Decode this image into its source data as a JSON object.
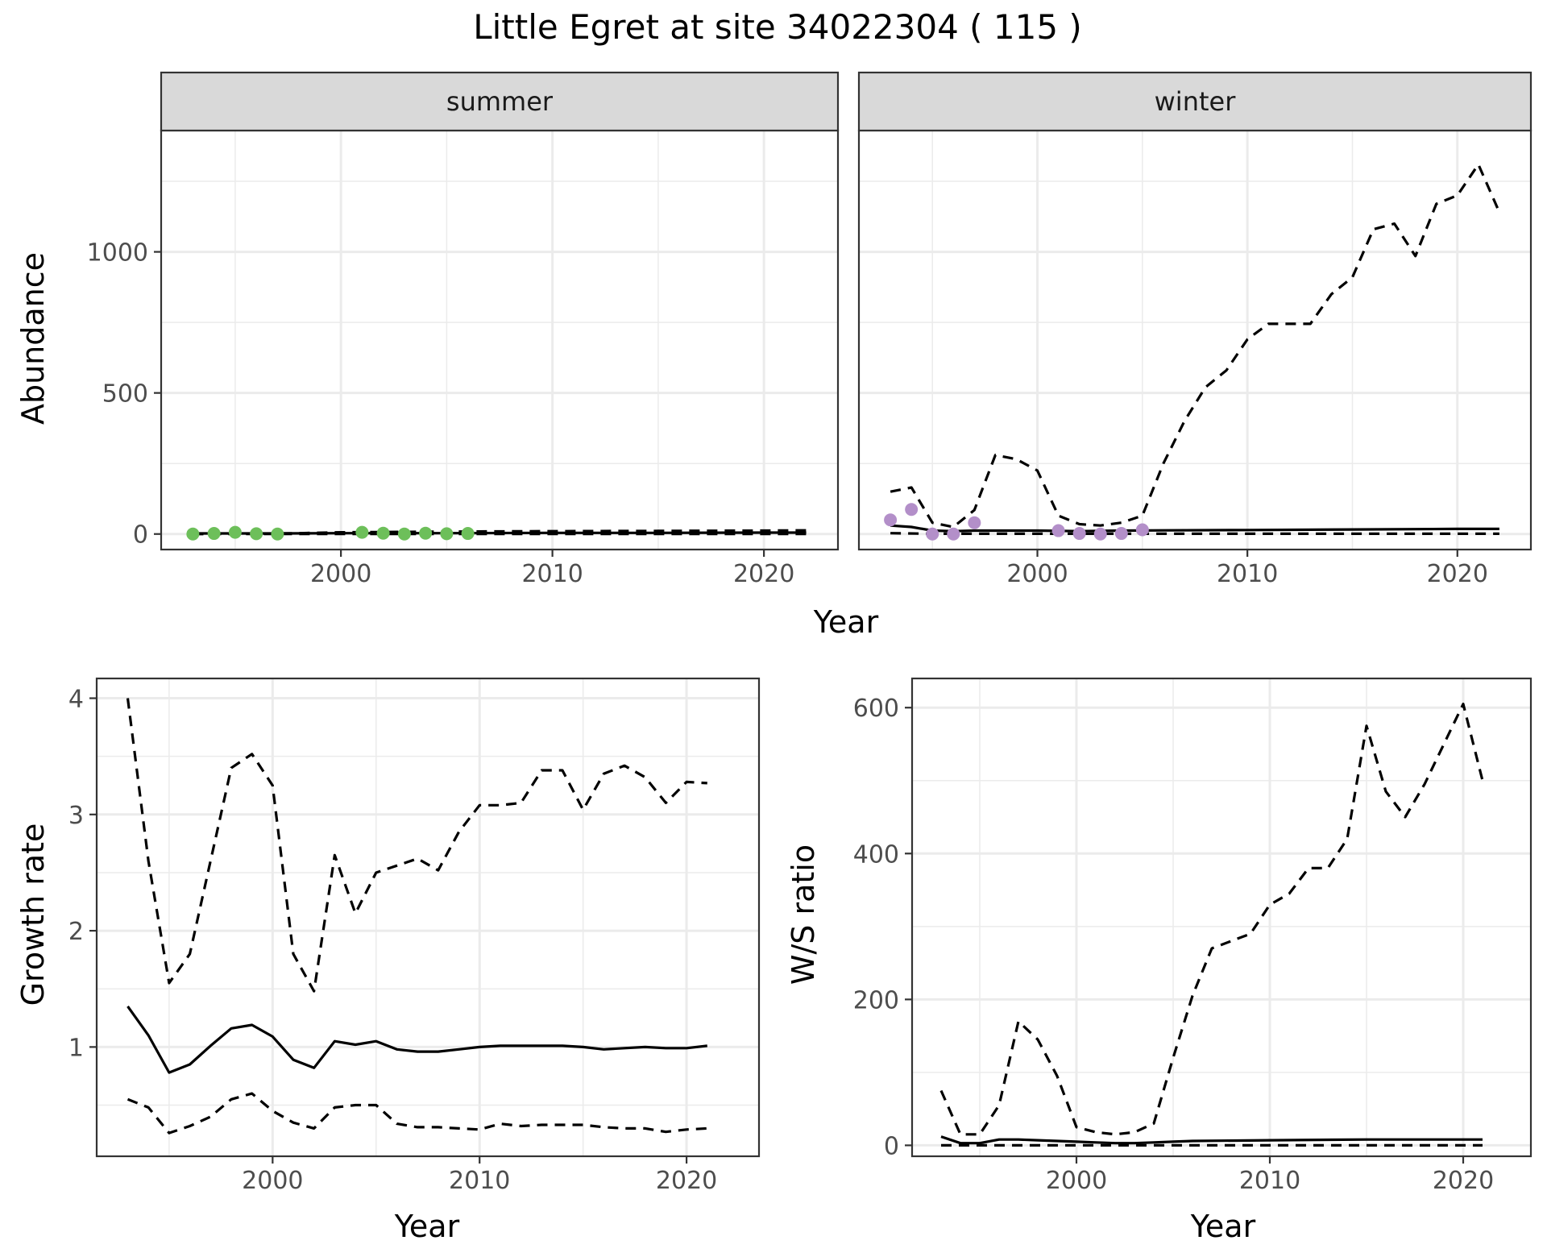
{
  "figure": {
    "title": "Little Egret at site 34022304 ( 115 )"
  },
  "colors": {
    "summer_points": "#6dbf5a",
    "winter_points": "#b38fc9",
    "lines": "#000000",
    "strip_fill": "#d9d9d9",
    "grid": "#ebebeb",
    "panel_border": "#333333"
  },
  "chart_data": [
    {
      "type": "line",
      "facet": "summer",
      "strip_label": "summer",
      "ylabel": "Abundance",
      "xlabel": "Year",
      "xlim": [
        1991.5,
        2023.5
      ],
      "ylim": [
        -55,
        1430
      ],
      "x_ticks": [
        2000,
        2010,
        2020
      ],
      "y_ticks": [
        0,
        500,
        1000
      ],
      "show_y_ticks": true,
      "grid": true,
      "points": {
        "x": [
          1993,
          1994,
          1995,
          1996,
          1997,
          2001,
          2002,
          2003,
          2004,
          2005,
          2006
        ],
        "y": [
          0,
          2,
          6,
          1,
          0,
          6,
          3,
          0,
          3,
          1,
          2
        ]
      },
      "series": [
        {
          "style": "solid",
          "x": [
            1993,
            1997,
            2000,
            2005,
            2010,
            2015,
            2020,
            2022
          ],
          "y": [
            2,
            2,
            3,
            3,
            4,
            4,
            5,
            5
          ]
        },
        {
          "style": "dashed",
          "x": [
            1993,
            1996,
            1998,
            2000,
            2002,
            2004,
            2006,
            2010,
            2015,
            2020,
            2022
          ],
          "y": [
            0,
            1,
            3,
            6,
            7,
            8,
            9,
            10,
            11,
            12,
            13
          ]
        },
        {
          "style": "dashed",
          "x": [
            1993,
            2000,
            2010,
            2022
          ],
          "y": [
            0,
            0,
            0,
            0
          ]
        }
      ]
    },
    {
      "type": "line",
      "facet": "winter",
      "strip_label": "winter",
      "ylabel": "",
      "xlabel": "Year",
      "xlim": [
        1991.5,
        2023.5
      ],
      "ylim": [
        -55,
        1430
      ],
      "x_ticks": [
        2000,
        2010,
        2020
      ],
      "y_ticks": [
        0,
        500,
        1000
      ],
      "show_y_ticks": false,
      "grid": true,
      "points": {
        "x": [
          1993,
          1994,
          1995,
          1996,
          1997,
          2001,
          2002,
          2003,
          2004,
          2005
        ],
        "y": [
          50,
          87,
          0,
          0,
          40,
          12,
          2,
          0,
          2,
          15
        ]
      },
      "series": [
        {
          "style": "solid",
          "x": [
            1993,
            1994,
            1995,
            1996,
            1997,
            1998,
            2000,
            2002,
            2004,
            2006,
            2010,
            2015,
            2020,
            2022
          ],
          "y": [
            30,
            25,
            12,
            10,
            12,
            12,
            12,
            10,
            12,
            13,
            14,
            16,
            18,
            18
          ]
        },
        {
          "style": "dashed",
          "x": [
            1993,
            1994,
            1995,
            1996,
            1997,
            1998,
            1999,
            2000,
            2001,
            2002,
            2003,
            2004,
            2005,
            2006,
            2007,
            2008,
            2009,
            2010,
            2011,
            2012,
            2013,
            2014,
            2015,
            2016,
            2017,
            2018,
            2019,
            2020,
            2021,
            2022
          ],
          "y": [
            150,
            165,
            40,
            25,
            85,
            280,
            265,
            225,
            65,
            35,
            30,
            40,
            65,
            250,
            400,
            520,
            580,
            690,
            745,
            745,
            745,
            850,
            910,
            1080,
            1100,
            985,
            1170,
            1200,
            1310,
            1140
          ]
        },
        {
          "style": "dashed",
          "x": [
            1993,
            1995,
            2000,
            2005,
            2010,
            2015,
            2020,
            2022
          ],
          "y": [
            3,
            1,
            1,
            1,
            1,
            1,
            1,
            1
          ]
        }
      ]
    },
    {
      "type": "line",
      "facet": "growth",
      "ylabel": "Growth rate",
      "xlabel": "Year",
      "xlim": [
        1991.5,
        2023.5
      ],
      "ylim": [
        0.06,
        4.17
      ],
      "x_ticks": [
        2000,
        2010,
        2020
      ],
      "y_ticks": [
        1,
        2,
        3,
        4
      ],
      "show_y_ticks": true,
      "grid": true,
      "series": [
        {
          "style": "solid",
          "x": [
            1993,
            1994,
            1995,
            1996,
            1997,
            1998,
            1999,
            2000,
            2001,
            2002,
            2003,
            2004,
            2005,
            2006,
            2007,
            2008,
            2009,
            2010,
            2011,
            2012,
            2013,
            2014,
            2015,
            2016,
            2017,
            2018,
            2019,
            2020,
            2021
          ],
          "y": [
            1.35,
            1.1,
            0.78,
            0.85,
            1.01,
            1.16,
            1.19,
            1.09,
            0.89,
            0.82,
            1.05,
            1.02,
            1.05,
            0.98,
            0.96,
            0.96,
            0.98,
            1.0,
            1.01,
            1.01,
            1.01,
            1.01,
            1.0,
            0.98,
            0.99,
            1.0,
            0.99,
            0.99,
            1.01
          ]
        },
        {
          "style": "dashed",
          "x": [
            1993,
            1994,
            1995,
            1996,
            1997,
            1998,
            1999,
            2000,
            2001,
            2002,
            2003,
            2004,
            2005,
            2006,
            2007,
            2008,
            2009,
            2010,
            2011,
            2012,
            2013,
            2014,
            2015,
            2016,
            2017,
            2018,
            2019,
            2020,
            2021
          ],
          "y": [
            4.0,
            2.6,
            1.55,
            1.8,
            2.6,
            3.4,
            3.52,
            3.25,
            1.8,
            1.48,
            2.65,
            2.15,
            2.5,
            2.56,
            2.62,
            2.52,
            2.85,
            3.08,
            3.08,
            3.1,
            3.38,
            3.38,
            3.04,
            3.35,
            3.42,
            3.32,
            3.1,
            3.28,
            3.27
          ]
        },
        {
          "style": "dashed",
          "x": [
            1993,
            1994,
            1995,
            1996,
            1997,
            1998,
            1999,
            2000,
            2001,
            2002,
            2003,
            2004,
            2005,
            2006,
            2007,
            2008,
            2009,
            2010,
            2011,
            2012,
            2013,
            2014,
            2015,
            2016,
            2017,
            2018,
            2019,
            2020,
            2021
          ],
          "y": [
            0.55,
            0.48,
            0.26,
            0.32,
            0.4,
            0.55,
            0.6,
            0.45,
            0.35,
            0.3,
            0.48,
            0.5,
            0.5,
            0.34,
            0.31,
            0.31,
            0.3,
            0.29,
            0.34,
            0.32,
            0.33,
            0.33,
            0.33,
            0.31,
            0.3,
            0.3,
            0.27,
            0.29,
            0.3
          ]
        }
      ]
    },
    {
      "type": "line",
      "facet": "ws_ratio",
      "ylabel": "W/S ratio",
      "xlabel": "Year",
      "xlim": [
        1991.5,
        2023.5
      ],
      "ylim": [
        -15,
        640
      ],
      "x_ticks": [
        2000,
        2010,
        2020
      ],
      "y_ticks": [
        0,
        200,
        400,
        600
      ],
      "show_y_ticks": true,
      "grid": true,
      "series": [
        {
          "style": "solid",
          "x": [
            1993,
            1994,
            1995,
            1996,
            1997,
            1998,
            1999,
            2000,
            2001,
            2002,
            2003,
            2004,
            2005,
            2006,
            2010,
            2015,
            2020,
            2021
          ],
          "y": [
            12,
            3,
            3,
            8,
            8,
            7,
            6,
            5,
            4,
            3,
            3,
            4,
            5,
            6,
            7,
            8,
            8,
            8
          ]
        },
        {
          "style": "dashed",
          "x": [
            1993,
            1994,
            1995,
            1996,
            1997,
            1998,
            1999,
            2000,
            2001,
            2002,
            2003,
            2004,
            2005,
            2006,
            2007,
            2008,
            2009,
            2010,
            2011,
            2012,
            2013,
            2014,
            2015,
            2016,
            2017,
            2018,
            2019,
            2020,
            2021
          ],
          "y": [
            75,
            15,
            15,
            55,
            170,
            145,
            95,
            25,
            18,
            15,
            18,
            30,
            120,
            205,
            270,
            280,
            290,
            330,
            345,
            380,
            380,
            420,
            575,
            485,
            450,
            495,
            550,
            605,
            500
          ]
        },
        {
          "style": "dashed",
          "x": [
            1993,
            1995,
            2000,
            2010,
            2021
          ],
          "y": [
            0,
            0,
            0,
            0,
            0
          ]
        }
      ]
    }
  ]
}
